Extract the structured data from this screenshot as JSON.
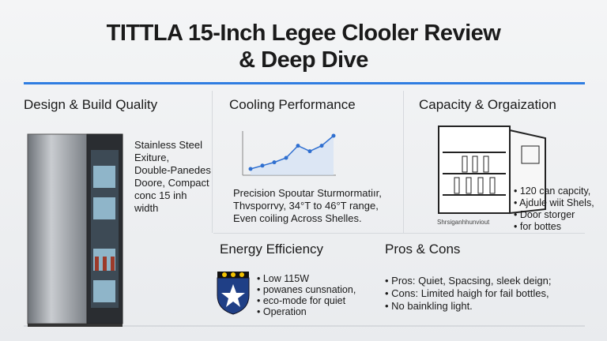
{
  "header": {
    "title": [
      "TITTLA 15-Inch Legee Clooler Review",
      "& Deep Dive"
    ]
  },
  "sections": {
    "design": {
      "heading": "Design & Build Quality",
      "lines": [
        "Stainless Steel",
        "Exiture,",
        "Double-Panedes",
        "Doore, Compact",
        "conc 15 inh",
        "width"
      ]
    },
    "cooling": {
      "heading": "Cooling Performance",
      "lines": [
        "Precision Spoutar Sturmormatiır,",
        "Thvsporrvy, 34°T to 46°T range,",
        "Even coiling Across Shelles."
      ],
      "chart": {
        "values": [
          2.0,
          2.3,
          2.6,
          3.0,
          4.1,
          3.6,
          4.1,
          5.0
        ]
      }
    },
    "capacity": {
      "heading": "Capacity & Orgaization",
      "bullets": [
        "120 can capcity,",
        "Ajdule wiit Shels,",
        "Door storger",
        "for bottes"
      ],
      "caption": "Shrsiganhhunviout"
    },
    "energy": {
      "heading": "Energy Efficiency",
      "lines": [
        "Low 115W",
        "powanes cunsnation,",
        "eco-mode for quiet",
        "Operation"
      ]
    },
    "pros_cons": {
      "heading": "Pros & Cons",
      "bullets": [
        "Pros: Quiet, Spacsing, sleek deign;",
        "Cons: Limited haigh for fail bottles,",
        "No bainkling light."
      ]
    }
  }
}
